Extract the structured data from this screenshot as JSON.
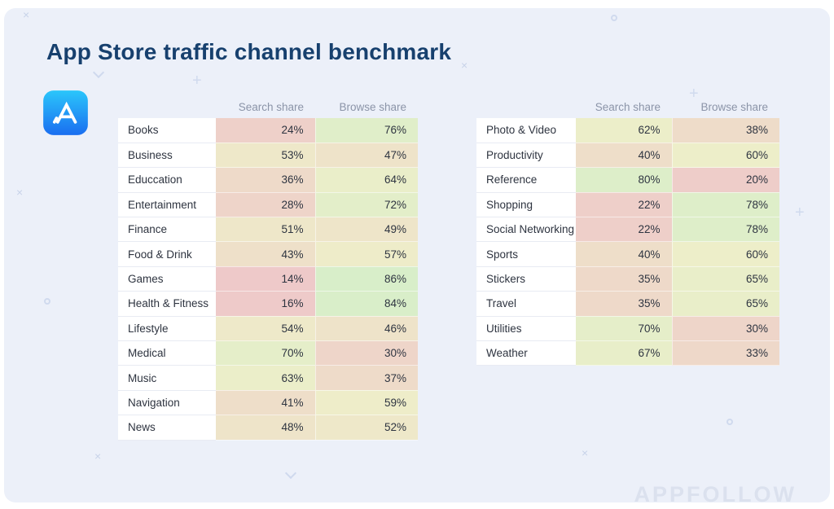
{
  "page": {
    "title": "App Store traffic channel benchmark",
    "watermark": "APPFOLLOW",
    "brand": "APPFOLLOW"
  },
  "decor": {
    "cross": "×",
    "plus": "+"
  },
  "colors": {
    "title_text": "#17406e",
    "panel_bg": "#ecf0f9",
    "header_text": "#8b94a8",
    "cell_text": "#2e3440",
    "low_value_color": "#efc9c5",
    "mid_value_color": "#f5eec6",
    "high_value_color": "#dde9cb"
  },
  "chart_data": {
    "type": "heatmap",
    "title": "App Store traffic channel benchmark",
    "columns": [
      "Search share",
      "Browse share"
    ],
    "value_unit": "%",
    "color_scale": "low=red, mid=yellow, high=green",
    "tables": [
      {
        "rows": [
          {
            "category": "Books",
            "search": 24,
            "browse": 76
          },
          {
            "category": "Business",
            "search": 53,
            "browse": 47
          },
          {
            "category": "Educcation",
            "search": 36,
            "browse": 64
          },
          {
            "category": "Entertainment",
            "search": 28,
            "browse": 72
          },
          {
            "category": "Finance",
            "search": 51,
            "browse": 49
          },
          {
            "category": "Food & Drink",
            "search": 43,
            "browse": 57
          },
          {
            "category": "Games",
            "search": 14,
            "browse": 86
          },
          {
            "category": "Health & Fitness",
            "search": 16,
            "browse": 84
          },
          {
            "category": "Lifestyle",
            "search": 54,
            "browse": 46
          },
          {
            "category": "Medical",
            "search": 70,
            "browse": 30
          },
          {
            "category": "Music",
            "search": 63,
            "browse": 37
          },
          {
            "category": "Navigation",
            "search": 41,
            "browse": 59
          },
          {
            "category": "News",
            "search": 48,
            "browse": 52
          }
        ]
      },
      {
        "rows": [
          {
            "category": "Photo & Video",
            "search": 62,
            "browse": 38
          },
          {
            "category": "Productivity",
            "search": 40,
            "browse": 60
          },
          {
            "category": "Reference",
            "search": 80,
            "browse": 20
          },
          {
            "category": "Shopping",
            "search": 22,
            "browse": 78
          },
          {
            "category": "Social Networking",
            "search": 22,
            "browse": 78
          },
          {
            "category": "Sports",
            "search": 40,
            "browse": 60
          },
          {
            "category": "Stickers",
            "search": 35,
            "browse": 65
          },
          {
            "category": "Travel",
            "search": 35,
            "browse": 65
          },
          {
            "category": "Utilities",
            "search": 70,
            "browse": 30
          },
          {
            "category": "Weather",
            "search": 67,
            "browse": 33
          }
        ]
      }
    ]
  }
}
